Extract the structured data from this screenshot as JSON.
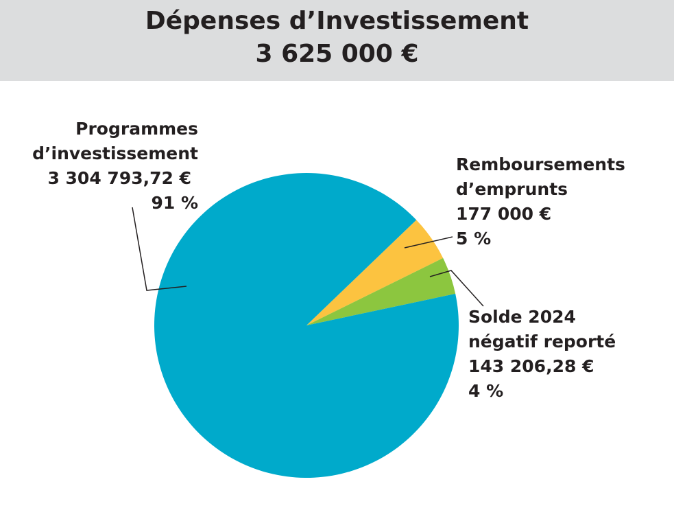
{
  "header": {
    "title": "Dépenses d’Investissement",
    "total": "3 625 000 €"
  },
  "colors": {
    "header_bg": "#dcddde",
    "programmes": "#00aacb",
    "remboursements": "#fcc340",
    "solde": "#8cc63f",
    "text": "#231f20"
  },
  "chart_data": {
    "type": "pie",
    "title": "Dépenses d’Investissement",
    "subtitle": "3 625 000 €",
    "slices": [
      {
        "name_lines": [
          "Programmes",
          "d’investissement"
        ],
        "value": 3304793.72,
        "value_label": "3 304 793,72 €",
        "percent": 91,
        "percent_label": "91 %",
        "color": "#00aacb"
      },
      {
        "name_lines": [
          "Remboursements",
          "d’emprunts"
        ],
        "value": 177000,
        "value_label": "177 000 €",
        "percent": 5,
        "percent_label": "5 %",
        "color": "#fcc340"
      },
      {
        "name_lines": [
          "Solde 2024",
          "négatif reporté"
        ],
        "value": 143206.28,
        "value_label": "143 206,28 €",
        "percent": 4,
        "percent_label": "4 %",
        "color": "#8cc63f"
      }
    ]
  }
}
